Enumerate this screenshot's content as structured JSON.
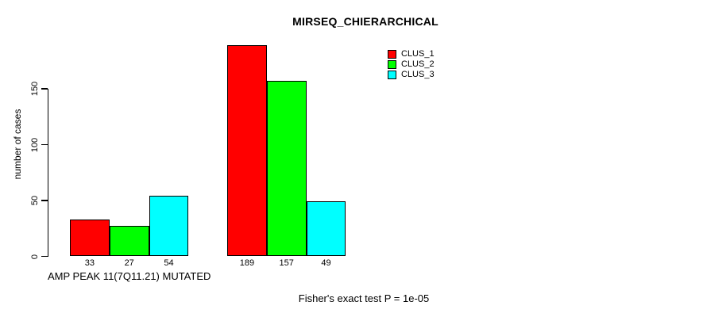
{
  "page": {
    "background_color": "#ffffff",
    "text_color": "#000000"
  },
  "chart_data": {
    "type": "bar",
    "title": "MIRSEQ_CHIERARCHICAL",
    "ylabel": "number of cases",
    "xlabel": "",
    "ylim": [
      0,
      150
    ],
    "yticks": [
      0,
      50,
      100,
      150
    ],
    "grid": false,
    "bar_outline_color": "#000000",
    "legend_position": "top-center",
    "series": [
      {
        "name": "CLUS_1",
        "color": "#ff0000"
      },
      {
        "name": "CLUS_2",
        "color": "#00ff00"
      },
      {
        "name": "CLUS_3",
        "color": "#00ffff"
      }
    ],
    "groups": [
      {
        "label": "AMP PEAK 11(7Q11.21) MUTATED",
        "values": [
          33,
          27,
          54
        ]
      },
      {
        "label": "",
        "values": [
          189,
          157,
          49
        ]
      }
    ],
    "bar_value_labels": [
      33,
      27,
      54,
      189,
      157,
      49
    ],
    "footnote": "Fisher's exact test P = 1e-05"
  }
}
